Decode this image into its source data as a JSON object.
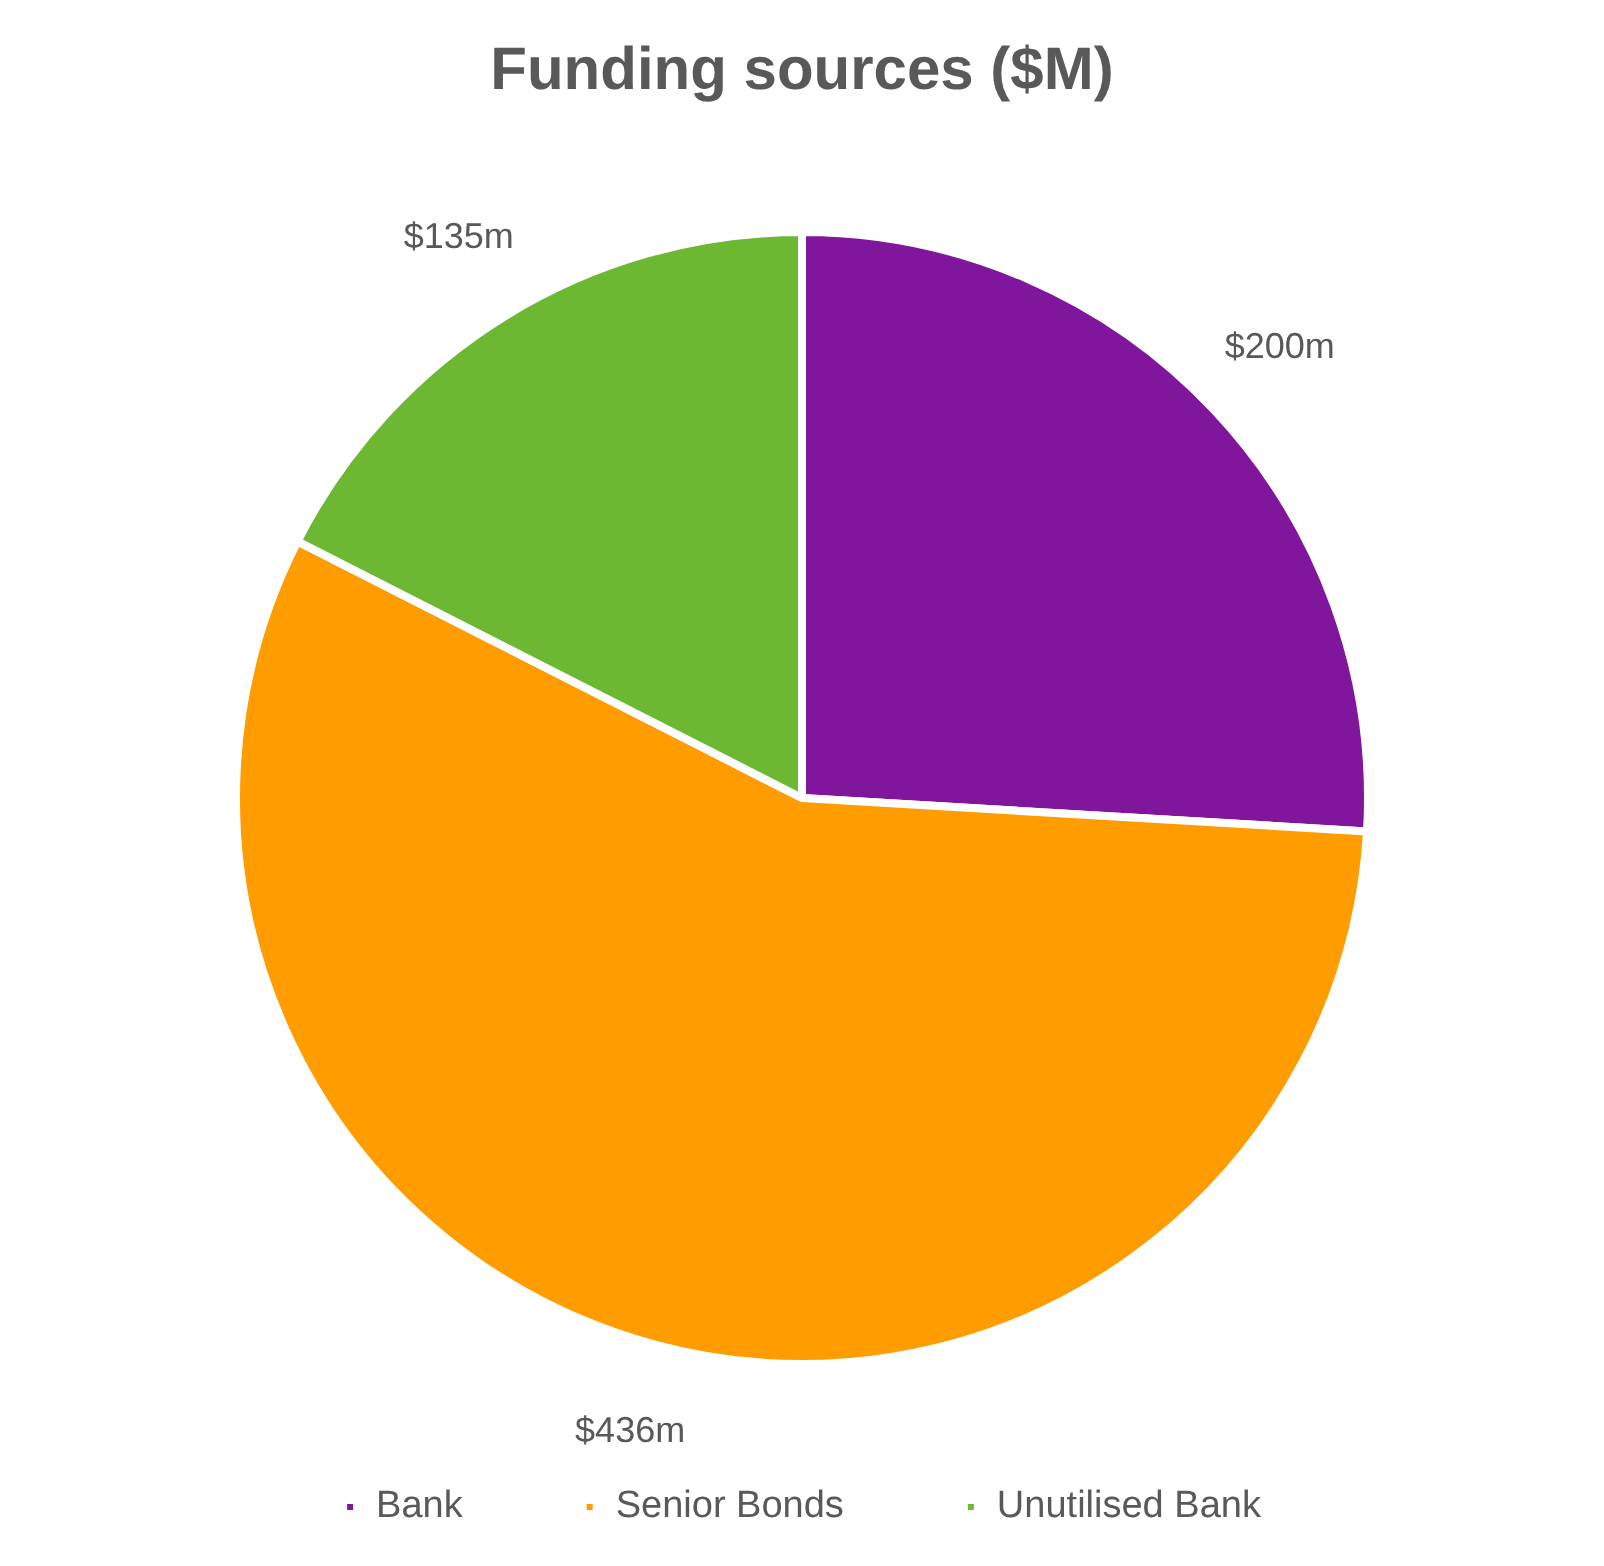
{
  "chart_data": {
    "type": "pie",
    "title": "Funding sources ($M)",
    "categories": [
      "Bank",
      "Senior Bonds",
      "Unutilised Bank"
    ],
    "values": [
      200,
      436,
      135
    ],
    "colors": [
      "#7f169b",
      "#ff9c00",
      "#6db833"
    ],
    "value_labels": [
      "$200m",
      "$436m",
      "$135m"
    ],
    "legend": "bottom"
  }
}
